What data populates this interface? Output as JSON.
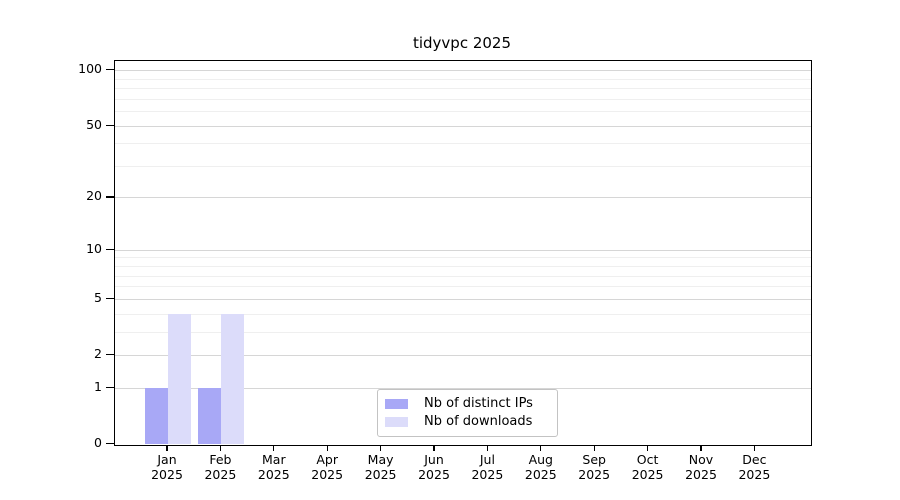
{
  "figure": {
    "background": "#ffffff",
    "title": "tidyvpc 2025"
  },
  "chart_data": {
    "type": "bar",
    "title": "tidyvpc 2025",
    "categories": [
      "Jan",
      "Feb",
      "Mar",
      "Apr",
      "May",
      "Jun",
      "Jul",
      "Aug",
      "Sep",
      "Oct",
      "Nov",
      "Dec"
    ],
    "x_year_label": "2025",
    "series": [
      {
        "name": "Nb of distinct IPs",
        "color": "#a8a8f6",
        "values": [
          1,
          1,
          0,
          0,
          0,
          0,
          0,
          0,
          0,
          0,
          0,
          0
        ]
      },
      {
        "name": "Nb of downloads",
        "color": "#dcdcfa",
        "values": [
          4,
          4,
          0,
          0,
          0,
          0,
          0,
          0,
          0,
          0,
          0,
          0
        ]
      }
    ],
    "yscale": "log1p",
    "ylim": [
      0,
      113
    ],
    "y_ticks": [
      100,
      50,
      20,
      10,
      5,
      2,
      1,
      0
    ],
    "y_minor_gridlines": [
      90,
      80,
      70,
      60,
      40,
      30,
      9,
      8,
      7,
      6,
      4,
      3
    ],
    "grid": true,
    "legend_position": "bottom-center",
    "colors": {
      "grid_major": "#d6d6d6",
      "grid_minor": "#efefef",
      "axis": "#000000",
      "legend_border": "#c3c3c3"
    }
  }
}
